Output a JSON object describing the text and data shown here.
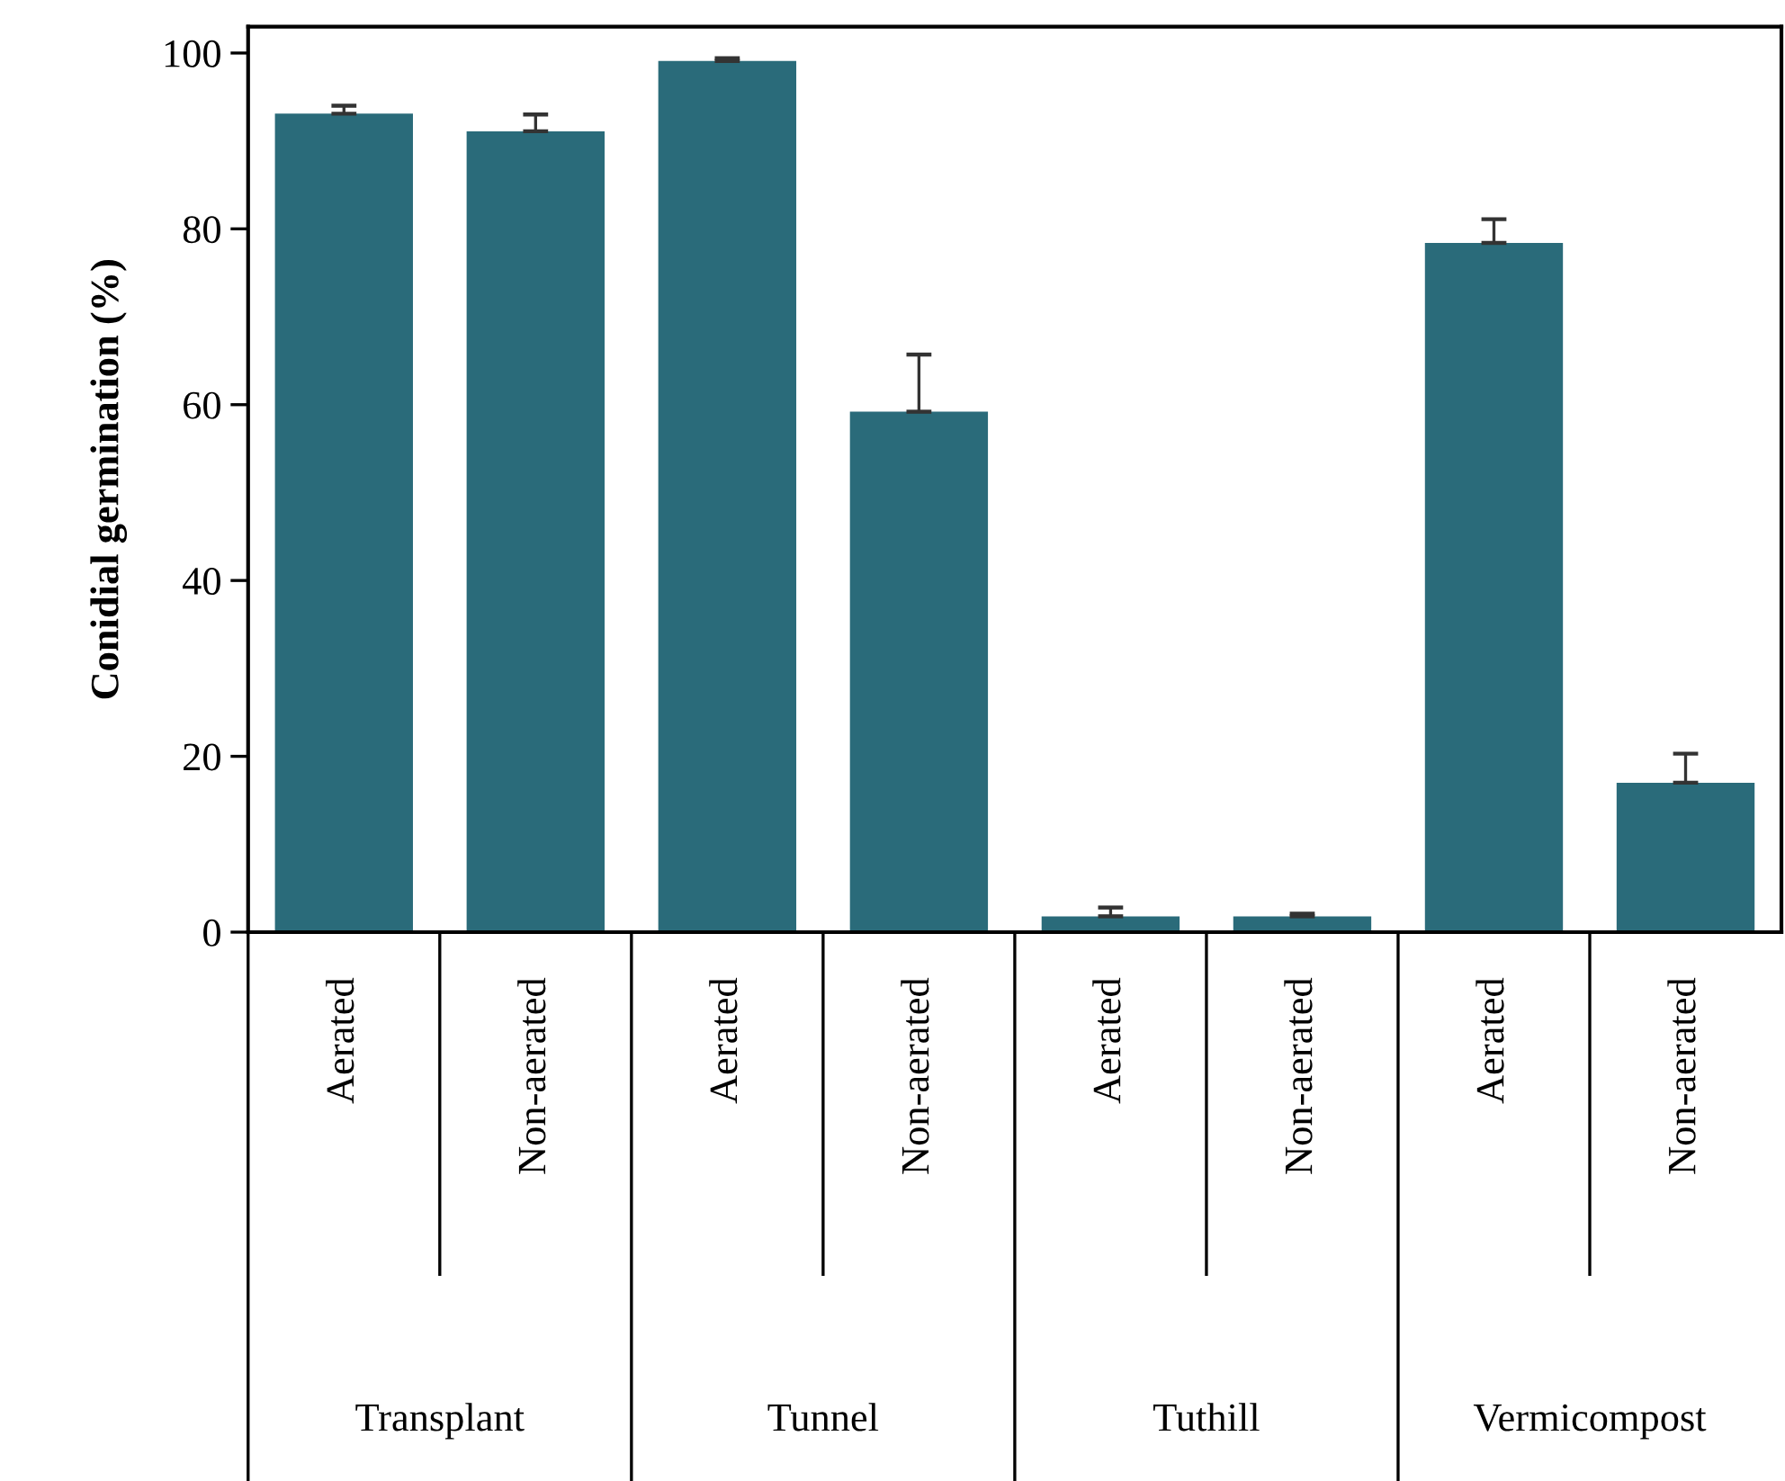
{
  "chart_data": {
    "type": "bar",
    "ylabel": "Conidial germination (%)",
    "categories": [
      "Aerated",
      "Non-aerated",
      "Aerated",
      "Non-aerated",
      "Aerated",
      "Non-aerated",
      "Aerated",
      "Non-aerated"
    ],
    "values": [
      93.1,
      91.1,
      99.1,
      59.2,
      1.8,
      1.8,
      78.4,
      17.0
    ],
    "errors": [
      [
        93.1,
        94.0
      ],
      [
        91.1,
        93.0
      ],
      [
        99.1,
        99.4
      ],
      [
        59.2,
        65.7
      ],
      [
        1.8,
        2.8
      ],
      [
        1.8,
        2.1
      ],
      [
        78.4,
        81.1
      ],
      [
        17.0,
        20.3
      ]
    ],
    "color": "#2a6b7a",
    "ylim": [
      0,
      103
    ],
    "yticks": [
      0,
      20,
      40,
      60,
      80,
      100
    ],
    "grid": false,
    "legend": false,
    "annotations": [
      "Transplant",
      "Tunnel",
      "Tuthill",
      "Vermicompost"
    ]
  }
}
